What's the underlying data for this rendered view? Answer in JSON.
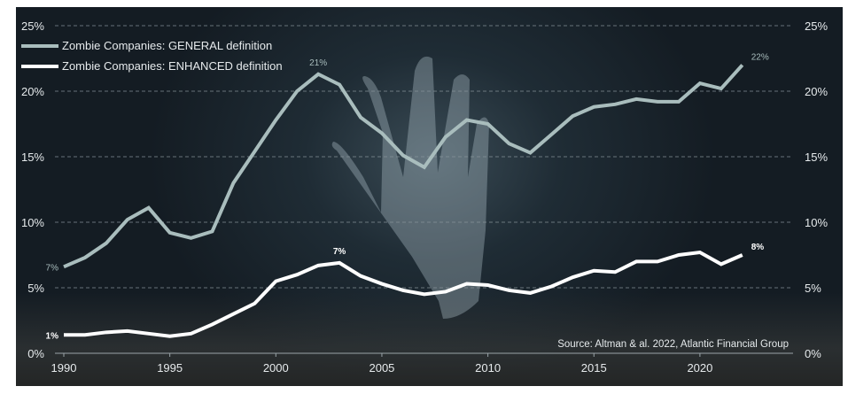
{
  "chart_data": {
    "type": "line",
    "title": "",
    "xlabel": "",
    "ylabel": "",
    "x": [
      1990,
      1991,
      1992,
      1993,
      1994,
      1995,
      1996,
      1997,
      1998,
      1999,
      2000,
      2001,
      2002,
      2003,
      2004,
      2005,
      2006,
      2007,
      2008,
      2009,
      2010,
      2011,
      2012,
      2013,
      2014,
      2015,
      2016,
      2017,
      2018,
      2019,
      2020,
      2021,
      2022
    ],
    "xlim": [
      1990,
      2023
    ],
    "ylim": [
      0,
      25
    ],
    "x_ticks": [
      "1990",
      "1995",
      "2000",
      "2005",
      "2010",
      "2015",
      "2020"
    ],
    "y_ticks": [
      "0%",
      "5%",
      "10%",
      "15%",
      "20%",
      "25%"
    ],
    "grid": "horizontal dashed",
    "legend_position": "top-left",
    "series": [
      {
        "name": "Zombie Companies: GENERAL definition",
        "color": "#a9bdbd",
        "values": [
          6.6,
          7.3,
          8.4,
          10.2,
          11.1,
          9.2,
          8.8,
          9.3,
          13.0,
          15.4,
          17.8,
          20.0,
          21.3,
          20.5,
          18.0,
          16.8,
          15.1,
          14.2,
          16.5,
          17.8,
          17.5,
          16.0,
          15.3,
          16.7,
          18.1,
          18.8,
          19.0,
          19.4,
          19.2,
          19.2,
          20.6,
          20.2,
          22.0
        ],
        "labels": [
          {
            "year": 1990,
            "text": "7%"
          },
          {
            "year": 2002,
            "text": "21%"
          },
          {
            "year": 2022,
            "text": "22%"
          }
        ]
      },
      {
        "name": "Zombie Companies: ENHANCED definition",
        "color": "#ffffff",
        "values": [
          1.4,
          1.4,
          1.6,
          1.7,
          1.5,
          1.3,
          1.5,
          2.2,
          3.0,
          3.8,
          5.5,
          6.0,
          6.7,
          6.9,
          5.9,
          5.3,
          4.8,
          4.5,
          4.7,
          5.3,
          5.2,
          4.8,
          4.6,
          5.1,
          5.8,
          6.3,
          6.2,
          7.0,
          7.0,
          7.5,
          7.7,
          6.8,
          7.5
        ],
        "labels": [
          {
            "year": 1990,
            "text": "1%"
          },
          {
            "year": 2003,
            "text": "7%"
          },
          {
            "year": 2022,
            "text": "8%"
          }
        ]
      }
    ],
    "source": "Source: Altman & al. 2022, Atlantic Financial Group"
  }
}
